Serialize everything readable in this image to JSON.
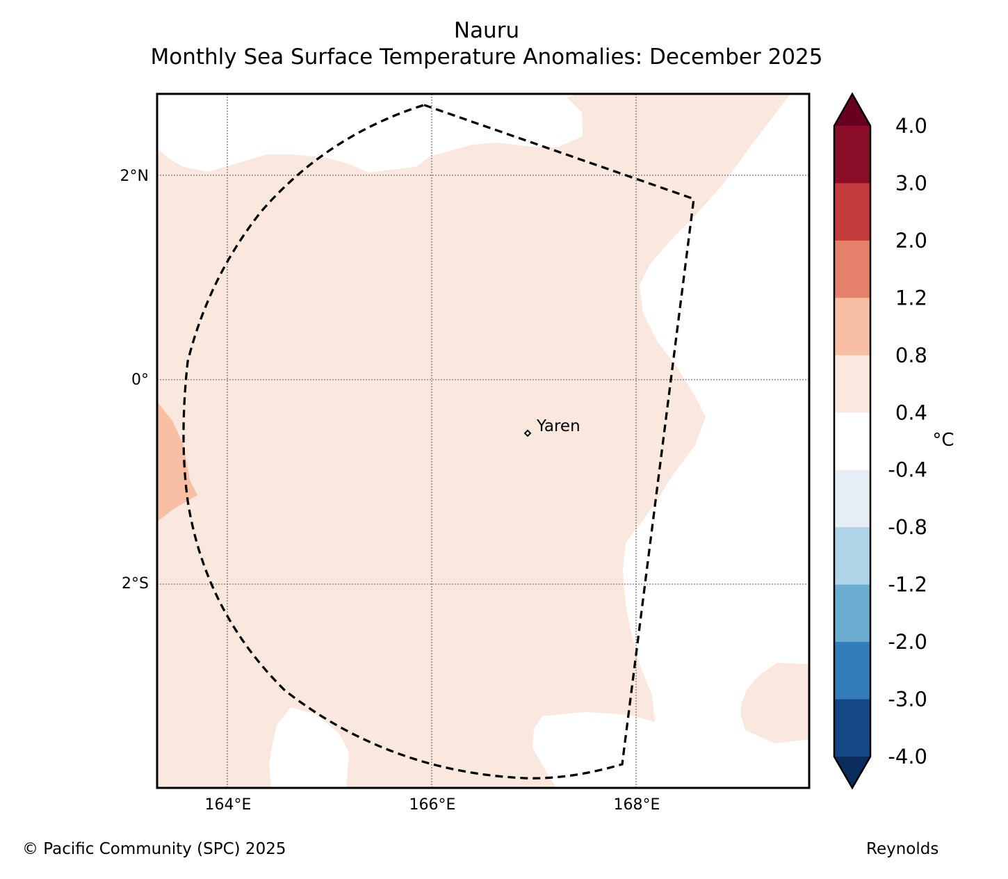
{
  "title": "Nauru",
  "subtitle": "Monthly Sea Surface Temperature Anomalies: December 2025",
  "map": {
    "lat_labels": [
      "2°N",
      "0°",
      "2°S"
    ],
    "lon_labels": [
      "164°E",
      "166°E",
      "168°E"
    ],
    "place": "Yaren"
  },
  "colorbar": {
    "unit": "°C",
    "ticks": [
      "4.0",
      "3.0",
      "2.0",
      "1.2",
      "0.8",
      "0.4",
      "-0.4",
      "-0.8",
      "-1.2",
      "-2.0",
      "-3.0",
      "-4.0"
    ],
    "colors": [
      "#67001f",
      "#8b0d27",
      "#c33b3b",
      "#e5816a",
      "#f9bfa5",
      "#fae8de",
      "#ffffff",
      "#e5edf5",
      "#b0d4e7",
      "#6bacd1",
      "#337dba",
      "#134785",
      "#0a2d5e"
    ]
  },
  "footer": {
    "credit": "© Pacific Community (SPC) 2025",
    "source": "Reynolds"
  }
}
